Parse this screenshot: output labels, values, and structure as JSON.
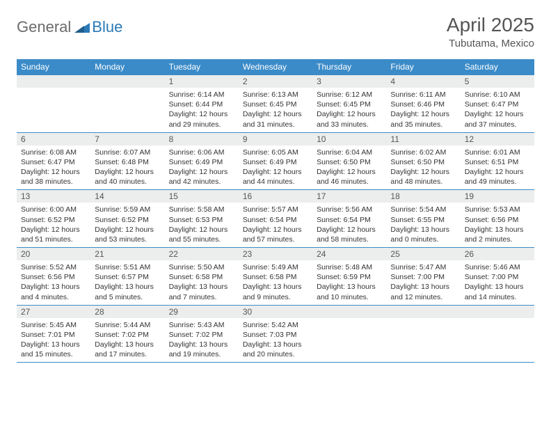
{
  "logo": {
    "general": "General",
    "blue": "Blue"
  },
  "title": "April 2025",
  "location": "Tubutama, Mexico",
  "colors": {
    "header_bg": "#3b8bc8",
    "header_text": "#ffffff",
    "daynum_bg": "#eceded",
    "border": "#3b8bc8",
    "logo_gray": "#6b6b6b",
    "logo_blue": "#2a7ab8",
    "text": "#333333",
    "title_color": "#555555"
  },
  "day_headers": [
    "Sunday",
    "Monday",
    "Tuesday",
    "Wednesday",
    "Thursday",
    "Friday",
    "Saturday"
  ],
  "weeks": [
    [
      {
        "num": "",
        "sunrise": "",
        "sunset": "",
        "daylight": ""
      },
      {
        "num": "",
        "sunrise": "",
        "sunset": "",
        "daylight": ""
      },
      {
        "num": "1",
        "sunrise": "Sunrise: 6:14 AM",
        "sunset": "Sunset: 6:44 PM",
        "daylight": "Daylight: 12 hours and 29 minutes."
      },
      {
        "num": "2",
        "sunrise": "Sunrise: 6:13 AM",
        "sunset": "Sunset: 6:45 PM",
        "daylight": "Daylight: 12 hours and 31 minutes."
      },
      {
        "num": "3",
        "sunrise": "Sunrise: 6:12 AM",
        "sunset": "Sunset: 6:45 PM",
        "daylight": "Daylight: 12 hours and 33 minutes."
      },
      {
        "num": "4",
        "sunrise": "Sunrise: 6:11 AM",
        "sunset": "Sunset: 6:46 PM",
        "daylight": "Daylight: 12 hours and 35 minutes."
      },
      {
        "num": "5",
        "sunrise": "Sunrise: 6:10 AM",
        "sunset": "Sunset: 6:47 PM",
        "daylight": "Daylight: 12 hours and 37 minutes."
      }
    ],
    [
      {
        "num": "6",
        "sunrise": "Sunrise: 6:08 AM",
        "sunset": "Sunset: 6:47 PM",
        "daylight": "Daylight: 12 hours and 38 minutes."
      },
      {
        "num": "7",
        "sunrise": "Sunrise: 6:07 AM",
        "sunset": "Sunset: 6:48 PM",
        "daylight": "Daylight: 12 hours and 40 minutes."
      },
      {
        "num": "8",
        "sunrise": "Sunrise: 6:06 AM",
        "sunset": "Sunset: 6:49 PM",
        "daylight": "Daylight: 12 hours and 42 minutes."
      },
      {
        "num": "9",
        "sunrise": "Sunrise: 6:05 AM",
        "sunset": "Sunset: 6:49 PM",
        "daylight": "Daylight: 12 hours and 44 minutes."
      },
      {
        "num": "10",
        "sunrise": "Sunrise: 6:04 AM",
        "sunset": "Sunset: 6:50 PM",
        "daylight": "Daylight: 12 hours and 46 minutes."
      },
      {
        "num": "11",
        "sunrise": "Sunrise: 6:02 AM",
        "sunset": "Sunset: 6:50 PM",
        "daylight": "Daylight: 12 hours and 48 minutes."
      },
      {
        "num": "12",
        "sunrise": "Sunrise: 6:01 AM",
        "sunset": "Sunset: 6:51 PM",
        "daylight": "Daylight: 12 hours and 49 minutes."
      }
    ],
    [
      {
        "num": "13",
        "sunrise": "Sunrise: 6:00 AM",
        "sunset": "Sunset: 6:52 PM",
        "daylight": "Daylight: 12 hours and 51 minutes."
      },
      {
        "num": "14",
        "sunrise": "Sunrise: 5:59 AM",
        "sunset": "Sunset: 6:52 PM",
        "daylight": "Daylight: 12 hours and 53 minutes."
      },
      {
        "num": "15",
        "sunrise": "Sunrise: 5:58 AM",
        "sunset": "Sunset: 6:53 PM",
        "daylight": "Daylight: 12 hours and 55 minutes."
      },
      {
        "num": "16",
        "sunrise": "Sunrise: 5:57 AM",
        "sunset": "Sunset: 6:54 PM",
        "daylight": "Daylight: 12 hours and 57 minutes."
      },
      {
        "num": "17",
        "sunrise": "Sunrise: 5:56 AM",
        "sunset": "Sunset: 6:54 PM",
        "daylight": "Daylight: 12 hours and 58 minutes."
      },
      {
        "num": "18",
        "sunrise": "Sunrise: 5:54 AM",
        "sunset": "Sunset: 6:55 PM",
        "daylight": "Daylight: 13 hours and 0 minutes."
      },
      {
        "num": "19",
        "sunrise": "Sunrise: 5:53 AM",
        "sunset": "Sunset: 6:56 PM",
        "daylight": "Daylight: 13 hours and 2 minutes."
      }
    ],
    [
      {
        "num": "20",
        "sunrise": "Sunrise: 5:52 AM",
        "sunset": "Sunset: 6:56 PM",
        "daylight": "Daylight: 13 hours and 4 minutes."
      },
      {
        "num": "21",
        "sunrise": "Sunrise: 5:51 AM",
        "sunset": "Sunset: 6:57 PM",
        "daylight": "Daylight: 13 hours and 5 minutes."
      },
      {
        "num": "22",
        "sunrise": "Sunrise: 5:50 AM",
        "sunset": "Sunset: 6:58 PM",
        "daylight": "Daylight: 13 hours and 7 minutes."
      },
      {
        "num": "23",
        "sunrise": "Sunrise: 5:49 AM",
        "sunset": "Sunset: 6:58 PM",
        "daylight": "Daylight: 13 hours and 9 minutes."
      },
      {
        "num": "24",
        "sunrise": "Sunrise: 5:48 AM",
        "sunset": "Sunset: 6:59 PM",
        "daylight": "Daylight: 13 hours and 10 minutes."
      },
      {
        "num": "25",
        "sunrise": "Sunrise: 5:47 AM",
        "sunset": "Sunset: 7:00 PM",
        "daylight": "Daylight: 13 hours and 12 minutes."
      },
      {
        "num": "26",
        "sunrise": "Sunrise: 5:46 AM",
        "sunset": "Sunset: 7:00 PM",
        "daylight": "Daylight: 13 hours and 14 minutes."
      }
    ],
    [
      {
        "num": "27",
        "sunrise": "Sunrise: 5:45 AM",
        "sunset": "Sunset: 7:01 PM",
        "daylight": "Daylight: 13 hours and 15 minutes."
      },
      {
        "num": "28",
        "sunrise": "Sunrise: 5:44 AM",
        "sunset": "Sunset: 7:02 PM",
        "daylight": "Daylight: 13 hours and 17 minutes."
      },
      {
        "num": "29",
        "sunrise": "Sunrise: 5:43 AM",
        "sunset": "Sunset: 7:02 PM",
        "daylight": "Daylight: 13 hours and 19 minutes."
      },
      {
        "num": "30",
        "sunrise": "Sunrise: 5:42 AM",
        "sunset": "Sunset: 7:03 PM",
        "daylight": "Daylight: 13 hours and 20 minutes."
      },
      {
        "num": "",
        "sunrise": "",
        "sunset": "",
        "daylight": ""
      },
      {
        "num": "",
        "sunrise": "",
        "sunset": "",
        "daylight": ""
      },
      {
        "num": "",
        "sunrise": "",
        "sunset": "",
        "daylight": ""
      }
    ]
  ]
}
